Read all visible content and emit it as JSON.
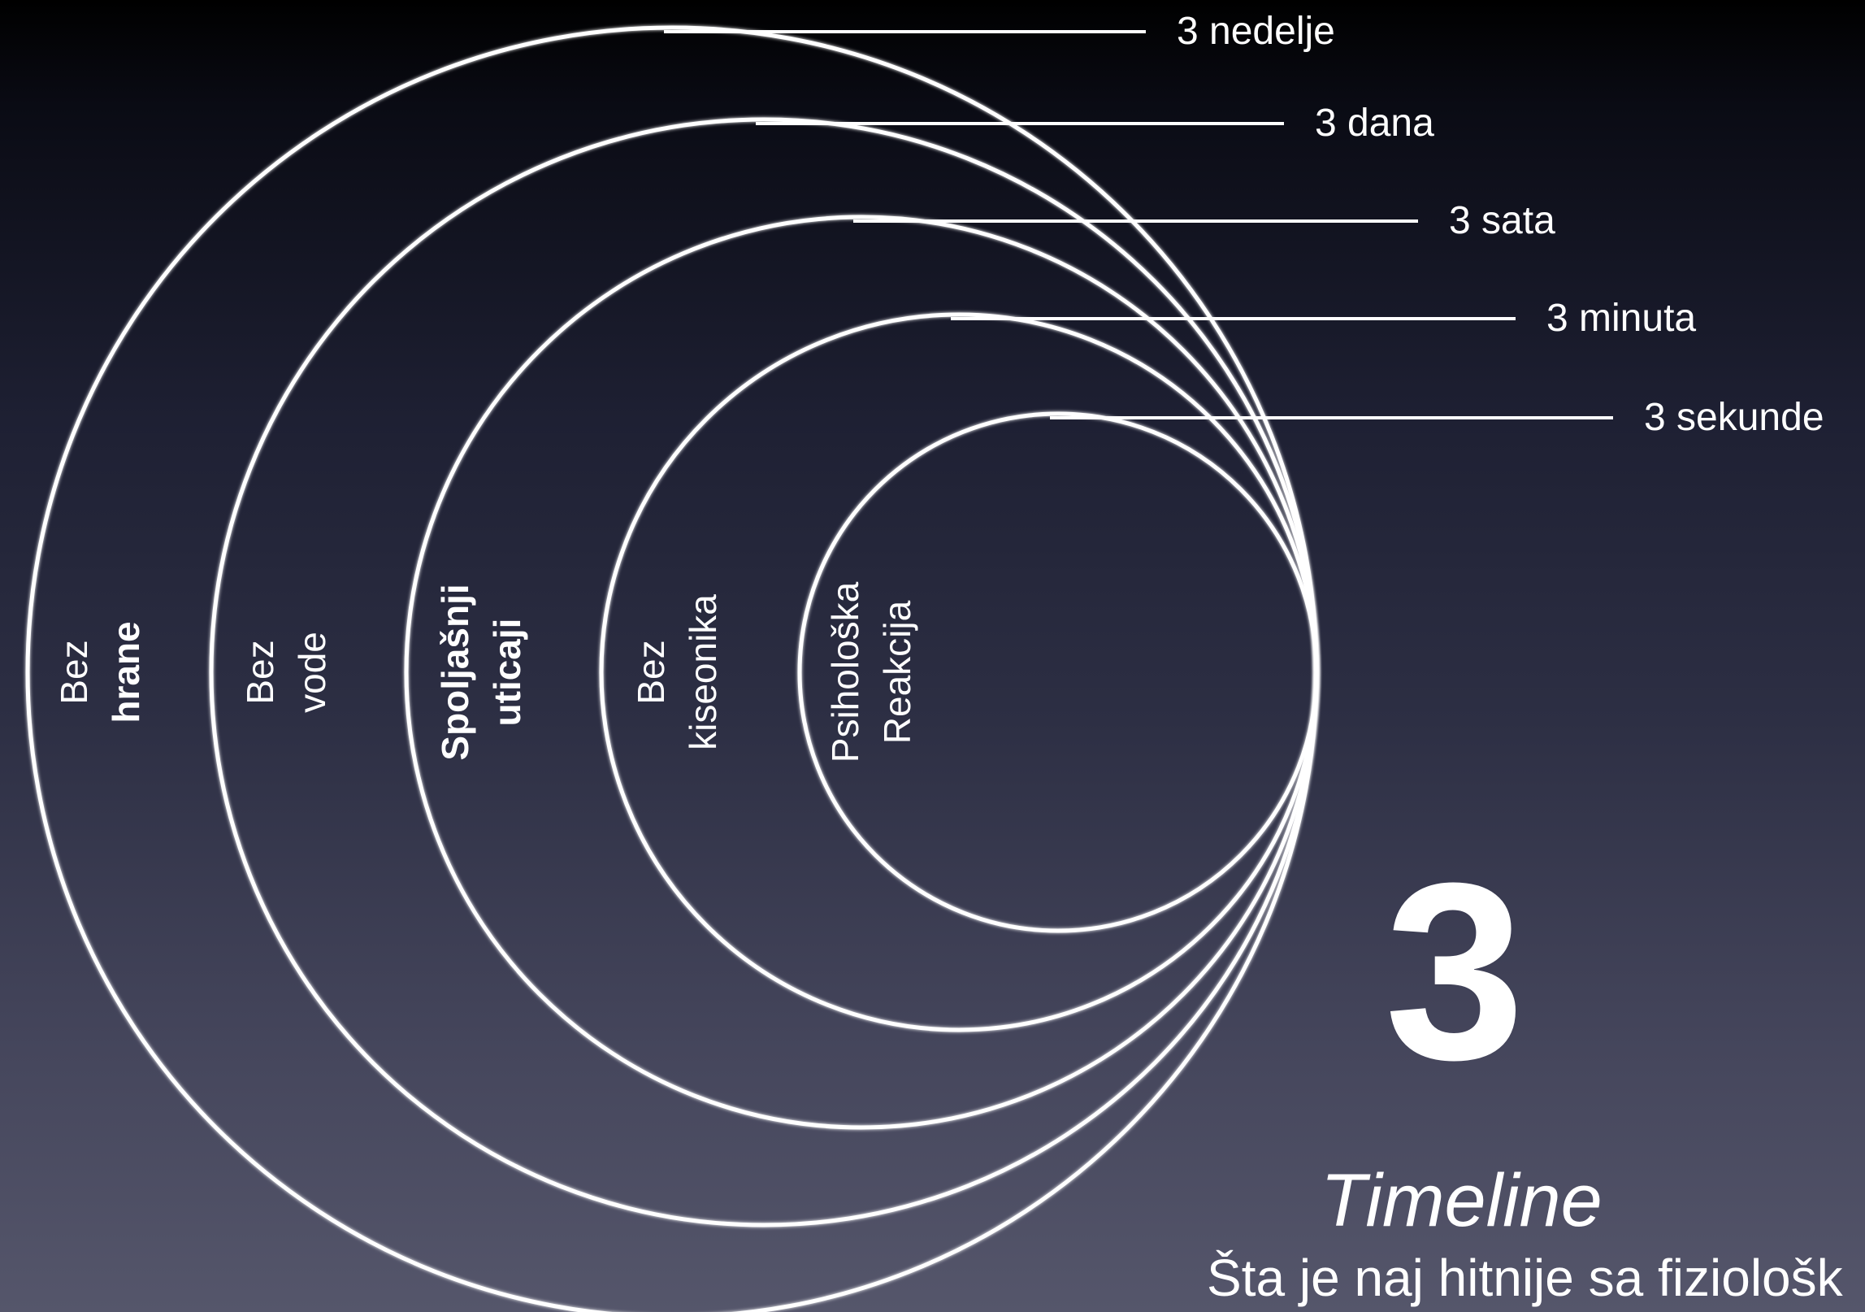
{
  "diagram": {
    "rings": [
      {
        "id": "food",
        "time_label": "3 nedelje",
        "line1": "Bez",
        "line2": "hrane",
        "bold_line": 2
      },
      {
        "id": "water",
        "time_label": "3 dana",
        "line1": "Bez",
        "line2": "vode",
        "bold_line": 0
      },
      {
        "id": "external",
        "time_label": "3 sata",
        "line1": "Spoljašnji",
        "line2": "uticaji",
        "bold_line": 3
      },
      {
        "id": "oxygen",
        "time_label": "3 minuta",
        "line1": "Bez",
        "line2": "kiseonika",
        "bold_line": 0
      },
      {
        "id": "psych",
        "time_label": "3 sekunde",
        "line1": "Psihološka",
        "line2": "Reakcija",
        "bold_line": 0
      }
    ]
  },
  "title": {
    "number": "3",
    "word": "Timeline",
    "subtitle": "Šta je naj hitnije sa fiziološk"
  },
  "colors": {
    "foreground": "#ffffff",
    "background_top": "#000000",
    "background_bottom": "#55566b"
  }
}
